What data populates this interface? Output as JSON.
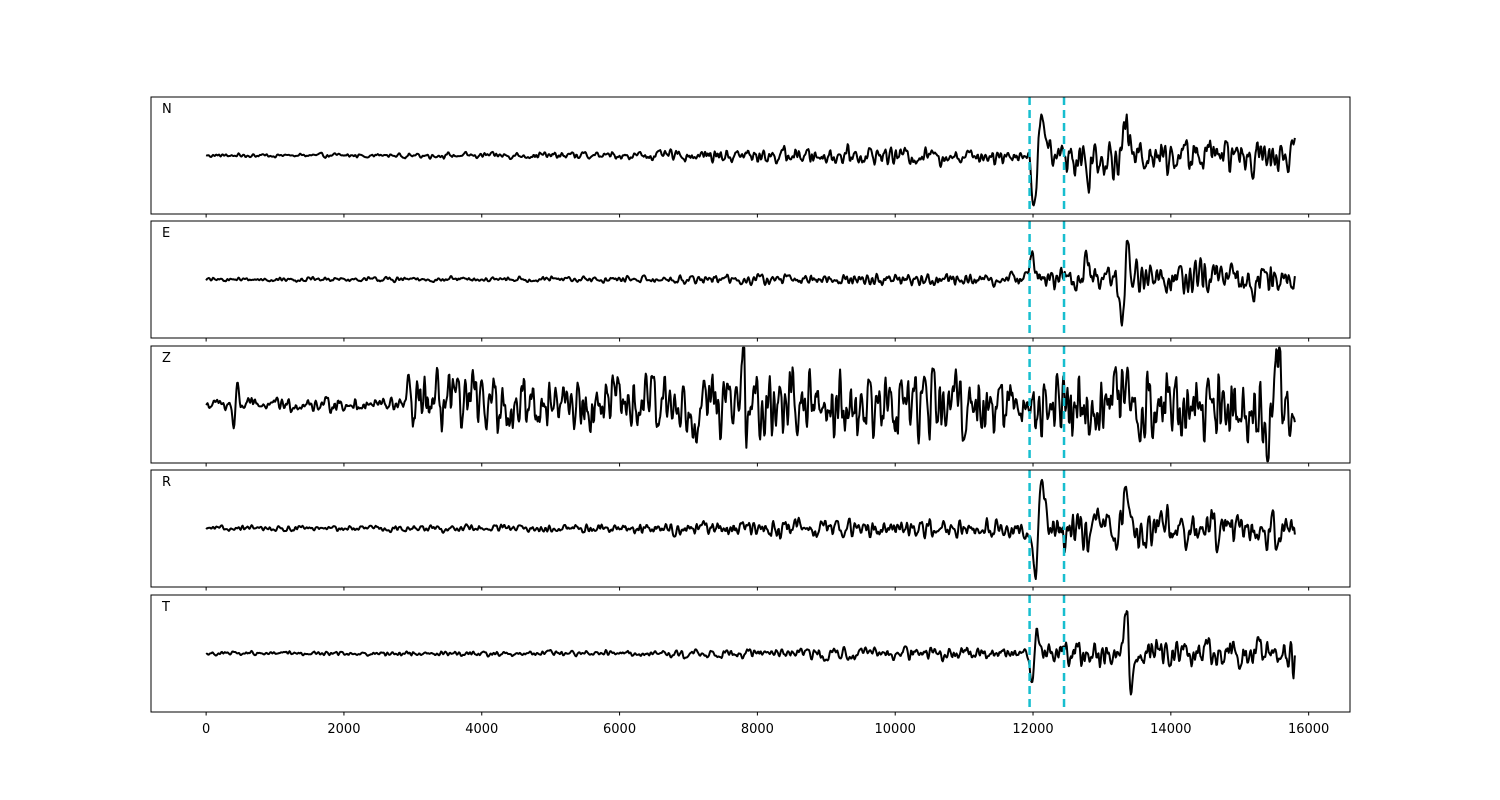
{
  "chart_data": {
    "type": "line",
    "title": "",
    "xlabel": "",
    "ylabel": "",
    "xlim": [
      -800,
      16600
    ],
    "x_ticks": [
      0,
      2000,
      4000,
      6000,
      8000,
      10000,
      12000,
      14000,
      16000
    ],
    "x_tick_labels": [
      "0",
      "2000",
      "4000",
      "6000",
      "8000",
      "10000",
      "12000",
      "14000",
      "16000"
    ],
    "grid": false,
    "trace_color": "#000000",
    "marker_color": "#17becf",
    "markers_x": [
      11950,
      12450
    ],
    "sample_range": [
      0,
      15800
    ],
    "panels": [
      {
        "label": "N",
        "ylim": [
          -1.15,
          1.15
        ],
        "noise_profile": [
          [
            0,
            0.03
          ],
          [
            3000,
            0.04
          ],
          [
            6000,
            0.07
          ],
          [
            8000,
            0.13
          ],
          [
            10000,
            0.16
          ],
          [
            11900,
            0.12
          ],
          [
            12600,
            0.35
          ],
          [
            14000,
            0.3
          ],
          [
            15800,
            0.28
          ]
        ],
        "peaks": [
          {
            "x": 12020,
            "y": -1.05,
            "w": 50
          },
          {
            "x": 12120,
            "y": 0.9,
            "w": 60
          },
          {
            "x": 13350,
            "y": 0.6,
            "w": 50
          },
          {
            "x": 12800,
            "y": -0.45,
            "w": 40
          }
        ]
      },
      {
        "label": "E",
        "ylim": [
          -1.15,
          1.15
        ],
        "noise_profile": [
          [
            0,
            0.03
          ],
          [
            3000,
            0.04
          ],
          [
            6000,
            0.05
          ],
          [
            8000,
            0.08
          ],
          [
            10000,
            0.1
          ],
          [
            11900,
            0.1
          ],
          [
            12600,
            0.25
          ],
          [
            14000,
            0.28
          ],
          [
            15800,
            0.27
          ]
        ],
        "peaks": [
          {
            "x": 11980,
            "y": 0.6,
            "w": 50
          },
          {
            "x": 13370,
            "y": 1.0,
            "w": 45
          },
          {
            "x": 13310,
            "y": -0.95,
            "w": 45
          },
          {
            "x": 12800,
            "y": 0.45,
            "w": 40
          }
        ]
      },
      {
        "label": "Z",
        "ylim": [
          -1.15,
          1.15
        ],
        "noise_profile": [
          [
            0,
            0.1
          ],
          [
            2900,
            0.12
          ],
          [
            3000,
            0.45
          ],
          [
            6000,
            0.45
          ],
          [
            7800,
            0.5
          ],
          [
            9000,
            0.55
          ],
          [
            12000,
            0.55
          ],
          [
            15800,
            0.6
          ]
        ],
        "peaks": [
          {
            "x": 450,
            "y": 0.45,
            "w": 25
          },
          {
            "x": 400,
            "y": -0.45,
            "w": 25
          },
          {
            "x": 2950,
            "y": 0.5,
            "w": 30
          },
          {
            "x": 3000,
            "y": -0.55,
            "w": 30
          },
          {
            "x": 7800,
            "y": 0.85,
            "w": 30
          },
          {
            "x": 7850,
            "y": -0.7,
            "w": 30
          },
          {
            "x": 15550,
            "y": 0.85,
            "w": 45
          },
          {
            "x": 15400,
            "y": -1.05,
            "w": 45
          }
        ]
      },
      {
        "label": "R",
        "ylim": [
          -1.15,
          1.15
        ],
        "noise_profile": [
          [
            0,
            0.04
          ],
          [
            3000,
            0.05
          ],
          [
            6000,
            0.08
          ],
          [
            8000,
            0.13
          ],
          [
            10000,
            0.16
          ],
          [
            11900,
            0.13
          ],
          [
            12600,
            0.35
          ],
          [
            14000,
            0.3
          ],
          [
            15800,
            0.28
          ]
        ],
        "peaks": [
          {
            "x": 12030,
            "y": -1.05,
            "w": 50
          },
          {
            "x": 12130,
            "y": 0.85,
            "w": 60
          },
          {
            "x": 13350,
            "y": 0.55,
            "w": 50
          },
          {
            "x": 12820,
            "y": -0.5,
            "w": 40
          }
        ]
      },
      {
        "label": "T",
        "ylim": [
          -1.15,
          1.15
        ],
        "noise_profile": [
          [
            0,
            0.03
          ],
          [
            3000,
            0.04
          ],
          [
            6000,
            0.05
          ],
          [
            8000,
            0.08
          ],
          [
            10000,
            0.1
          ],
          [
            11900,
            0.1
          ],
          [
            12600,
            0.22
          ],
          [
            14000,
            0.25
          ],
          [
            15800,
            0.25
          ]
        ],
        "peaks": [
          {
            "x": 12050,
            "y": 0.6,
            "w": 45
          },
          {
            "x": 11990,
            "y": -0.6,
            "w": 45
          },
          {
            "x": 13360,
            "y": 1.0,
            "w": 40
          },
          {
            "x": 13410,
            "y": -0.95,
            "w": 40
          },
          {
            "x": 15790,
            "y": -0.3,
            "w": 30
          }
        ]
      }
    ]
  }
}
